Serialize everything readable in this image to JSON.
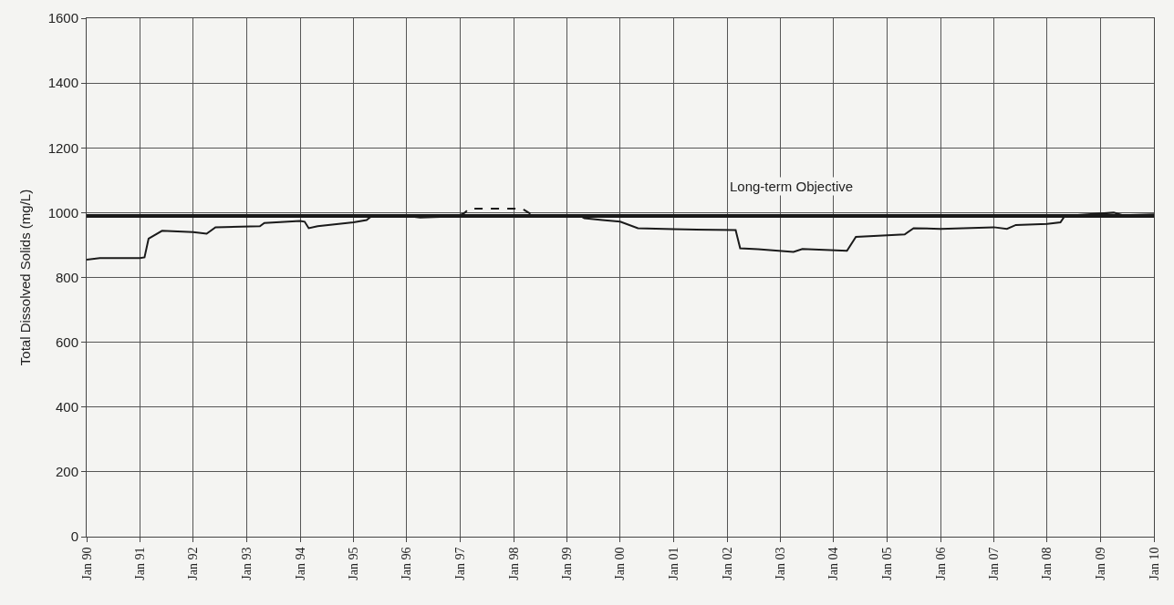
{
  "chart_data": {
    "type": "line",
    "ylabel": "Total Dissolved Solids (mg/L)",
    "xlim": [
      "1990-01",
      "2010-01"
    ],
    "xticks": [
      {
        "value": "1990-01",
        "label": "Jan 90"
      },
      {
        "value": "1991-01",
        "label": "Jan 91"
      },
      {
        "value": "1992-01",
        "label": "Jan 92"
      },
      {
        "value": "1993-01",
        "label": "Jan 93"
      },
      {
        "value": "1994-01",
        "label": "Jan 94"
      },
      {
        "value": "1995-01",
        "label": "Jan 95"
      },
      {
        "value": "1996-01",
        "label": "Jan 96"
      },
      {
        "value": "1997-01",
        "label": "Jan 97"
      },
      {
        "value": "1998-01",
        "label": "Jan 98"
      },
      {
        "value": "1999-01",
        "label": "Jan 99"
      },
      {
        "value": "2000-01",
        "label": "Jan 00"
      },
      {
        "value": "2001-01",
        "label": "Jan 01"
      },
      {
        "value": "2002-01",
        "label": "Jan 02"
      },
      {
        "value": "2003-01",
        "label": "Jan 03"
      },
      {
        "value": "2004-01",
        "label": "Jan 04"
      },
      {
        "value": "2005-01",
        "label": "Jan 05"
      },
      {
        "value": "2006-01",
        "label": "Jan 06"
      },
      {
        "value": "2007-01",
        "label": "Jan 07"
      },
      {
        "value": "2008-01",
        "label": "Jan 08"
      },
      {
        "value": "2009-01",
        "label": "Jan 09"
      },
      {
        "value": "2010-01",
        "label": "Jan 10"
      }
    ],
    "ylim": [
      0,
      1600
    ],
    "yticks": [
      0,
      200,
      400,
      600,
      800,
      1000,
      1200,
      1400,
      1600
    ],
    "grid": true,
    "marker": "none",
    "series": [
      {
        "color": "#1a1a1a",
        "line_style": "solid",
        "x": [
          "1990-01",
          "1990-04",
          "1991-01",
          "1991-02",
          "1991-03",
          "1991-06",
          "1992-01",
          "1992-04",
          "1992-06",
          "1993-04",
          "1993-05",
          "1994-01",
          "1994-02",
          "1994-03",
          "1994-05",
          "1995-01",
          "1995-04",
          "1995-05",
          "1996-01",
          "1996-04",
          "1996-10",
          "1997-01",
          "1998-06",
          "1999-04",
          "1999-05",
          "1999-09",
          "2000-01",
          "2000-05",
          "2001-01",
          "2002-03",
          "2002-04",
          "2002-08",
          "2003-04",
          "2003-06",
          "2004-04",
          "2004-06",
          "2005-01",
          "2005-05",
          "2005-07",
          "2006-01",
          "2007-01",
          "2007-04",
          "2007-06",
          "2008-01",
          "2008-04",
          "2008-05",
          "2009-04",
          "2009-06",
          "2010-01"
        ],
        "values": [
          855,
          860,
          860,
          862,
          920,
          944,
          940,
          935,
          955,
          958,
          968,
          974,
          972,
          952,
          958,
          970,
          977,
          988,
          990,
          985,
          988,
          992,
          992,
          990,
          983,
          977,
          972,
          952,
          949,
          946,
          890,
          887,
          879,
          888,
          882,
          925,
          930,
          933,
          952,
          950,
          955,
          950,
          962,
          965,
          970,
          990,
          1000,
          992,
          995
        ]
      },
      {
        "color": "#1a1a1a",
        "line_style": "dashed",
        "x": [
          "1997-01",
          "1997-02",
          "1997-03",
          "1998-03",
          "1998-05"
        ],
        "values": [
          992,
          1000,
          1012,
          1012,
          995
        ]
      }
    ],
    "ref_lines": [
      {
        "axis": "y",
        "value": 990,
        "label": "Long-term Objective",
        "color": "#1a1a1a"
      }
    ]
  }
}
